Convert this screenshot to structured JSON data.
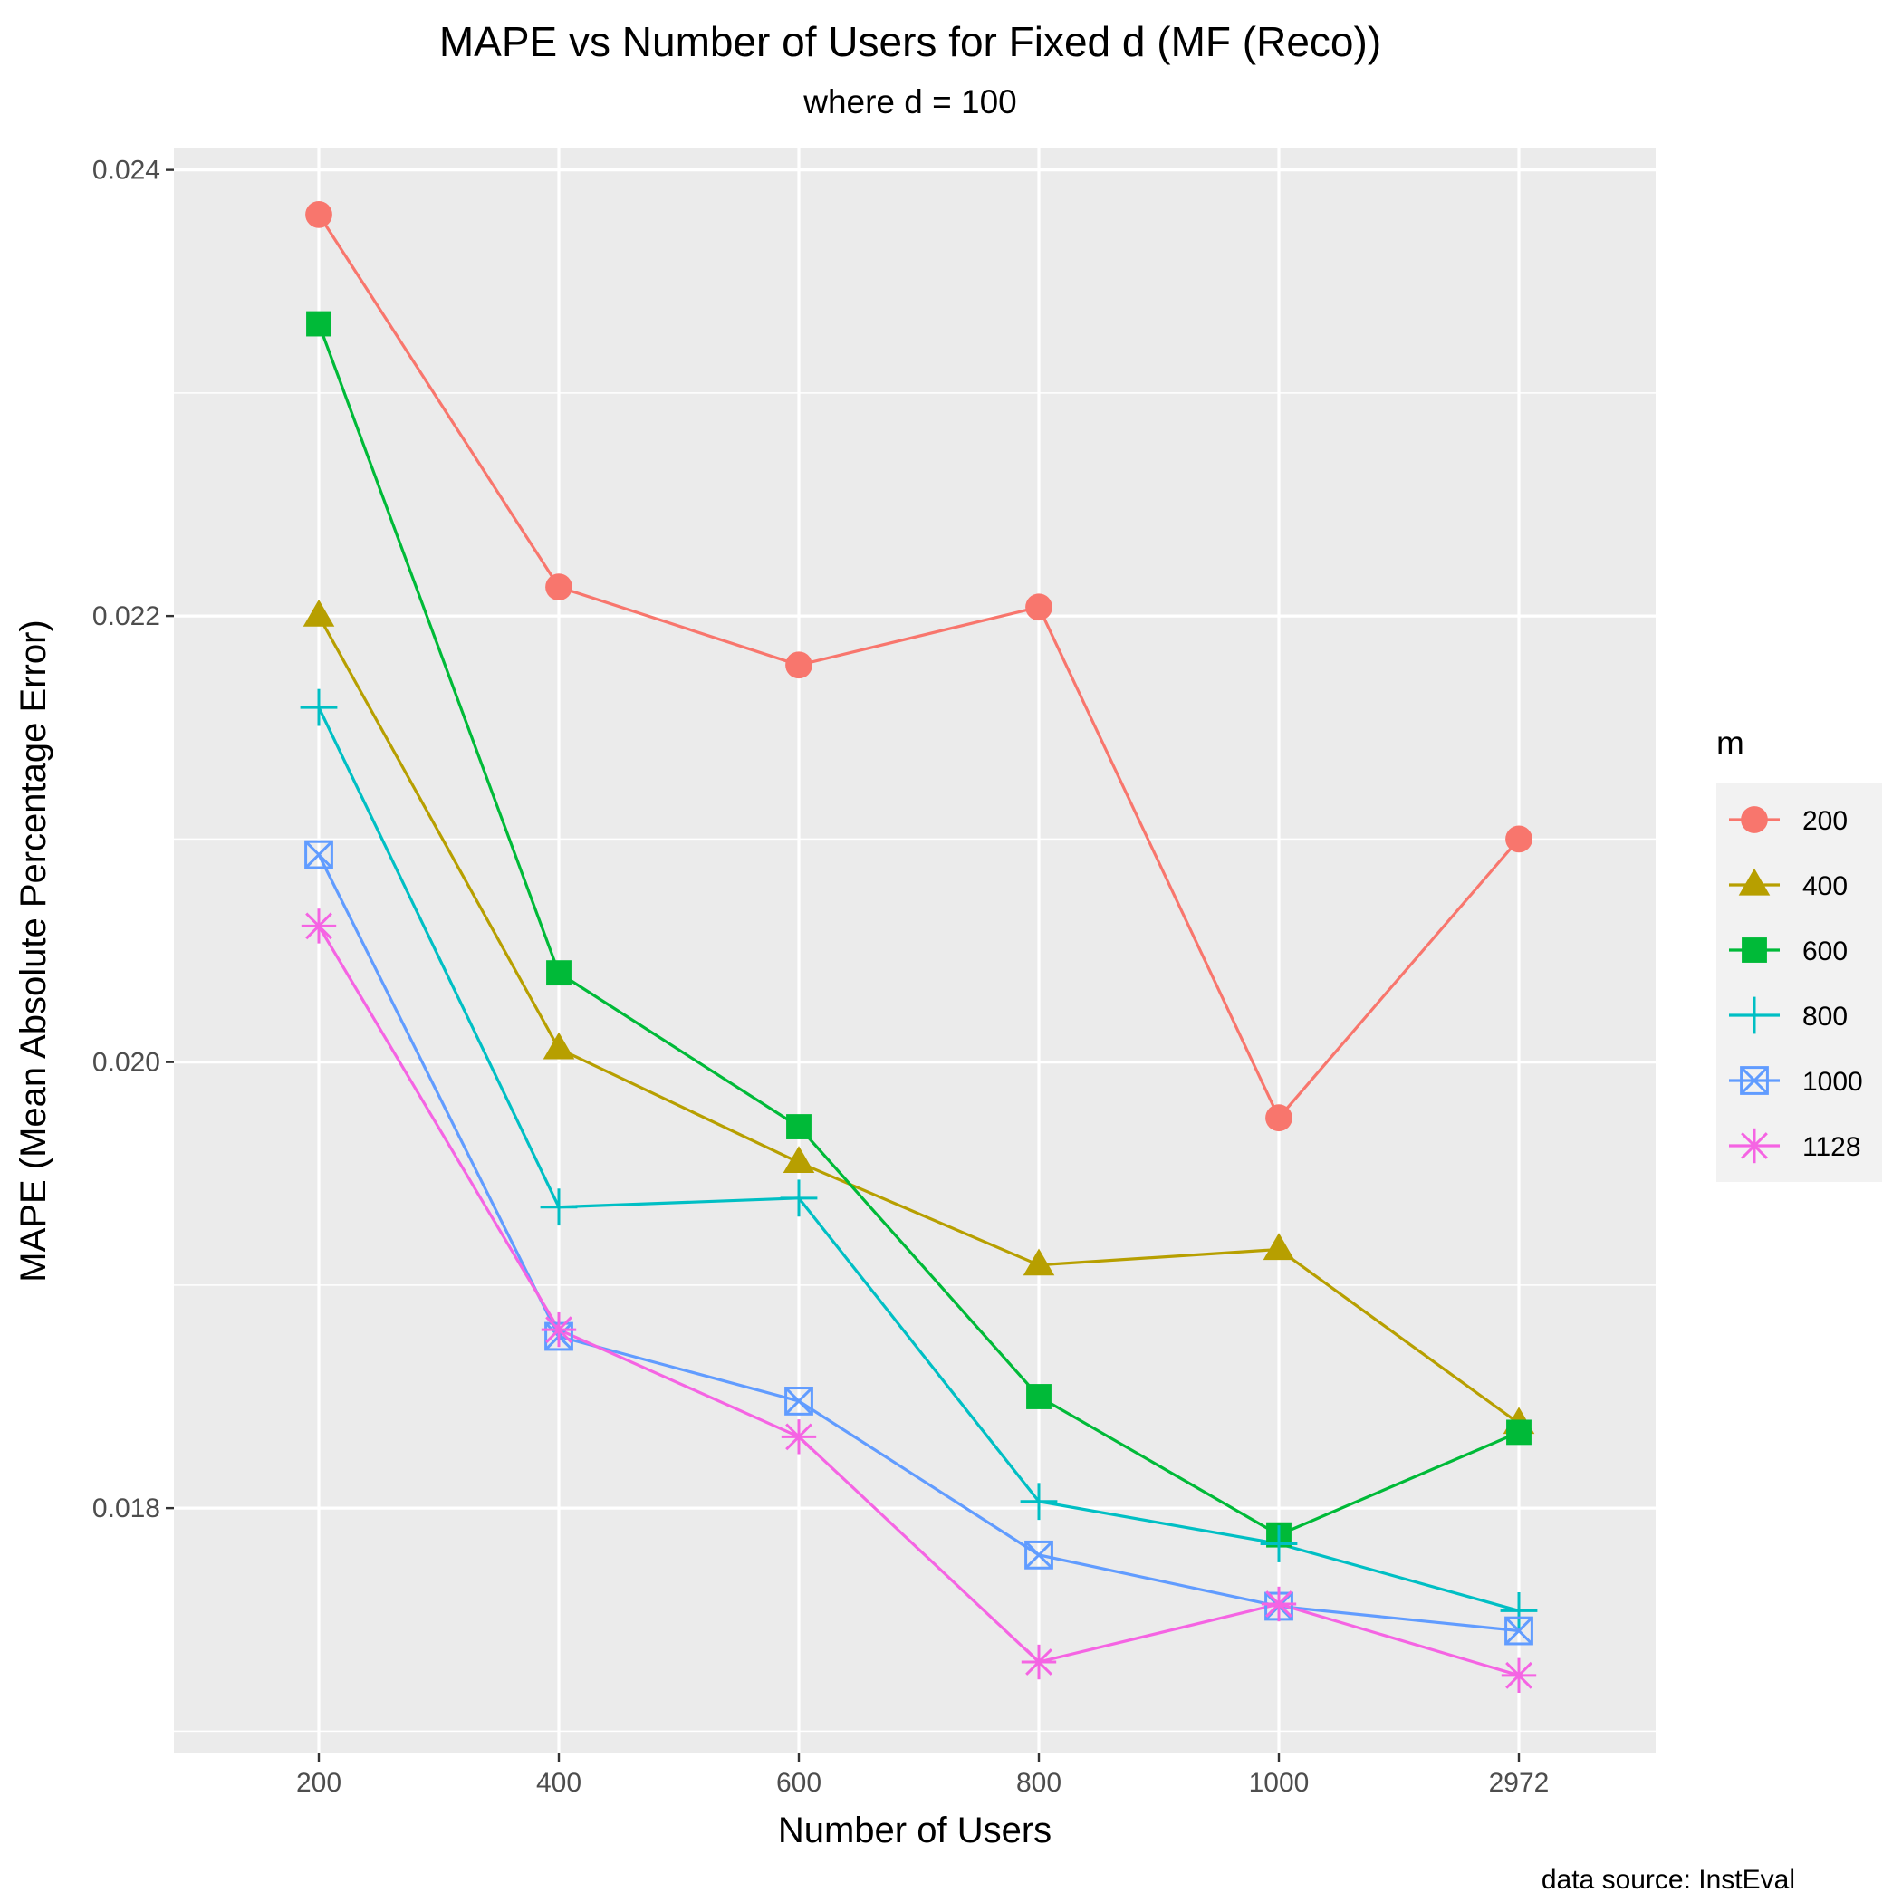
{
  "chart_data": {
    "type": "line",
    "title": "MAPE vs Number of Users for Fixed d (MF (Reco))",
    "subtitle": "where d = 100",
    "xlabel": "Number of Users",
    "ylabel": "MAPE (Mean Absolute Percentage Error)",
    "caption": "data source: InstEval",
    "categories": [
      "200",
      "400",
      "600",
      "800",
      "1000",
      "2972"
    ],
    "x_scale": "discrete",
    "y_ticks": [
      "0.024",
      "0.022",
      "0.020",
      "0.018"
    ],
    "ylim": [
      0.0169,
      0.0241
    ],
    "grid": true,
    "legend": {
      "title": "m",
      "position": "right"
    },
    "series": [
      {
        "name": "200",
        "color": "#F8766D",
        "shape": "circle",
        "values": [
          0.0238,
          0.02213,
          0.02178,
          0.02204,
          0.01975,
          0.021
        ]
      },
      {
        "name": "400",
        "color": "#B79F00",
        "shape": "triangle",
        "values": [
          0.022,
          0.02006,
          0.01955,
          0.01909,
          0.01916,
          0.01838
        ]
      },
      {
        "name": "600",
        "color": "#00BA38",
        "shape": "square",
        "values": [
          0.02331,
          0.0204,
          0.01971,
          0.0185,
          0.01788,
          0.01834
        ]
      },
      {
        "name": "800",
        "color": "#00BFC4",
        "shape": "plus",
        "values": [
          0.02159,
          0.01935,
          0.01939,
          0.01803,
          0.01784,
          0.01754
        ]
      },
      {
        "name": "1000",
        "color": "#619CFF",
        "shape": "boxcross",
        "values": [
          0.02093,
          0.01877,
          0.01848,
          0.01779,
          0.01756,
          0.01745
        ]
      },
      {
        "name": "1128",
        "color": "#F564E3",
        "shape": "asterisk",
        "values": [
          0.02061,
          0.0188,
          0.01832,
          0.01731,
          0.01757,
          0.01725
        ]
      }
    ]
  }
}
